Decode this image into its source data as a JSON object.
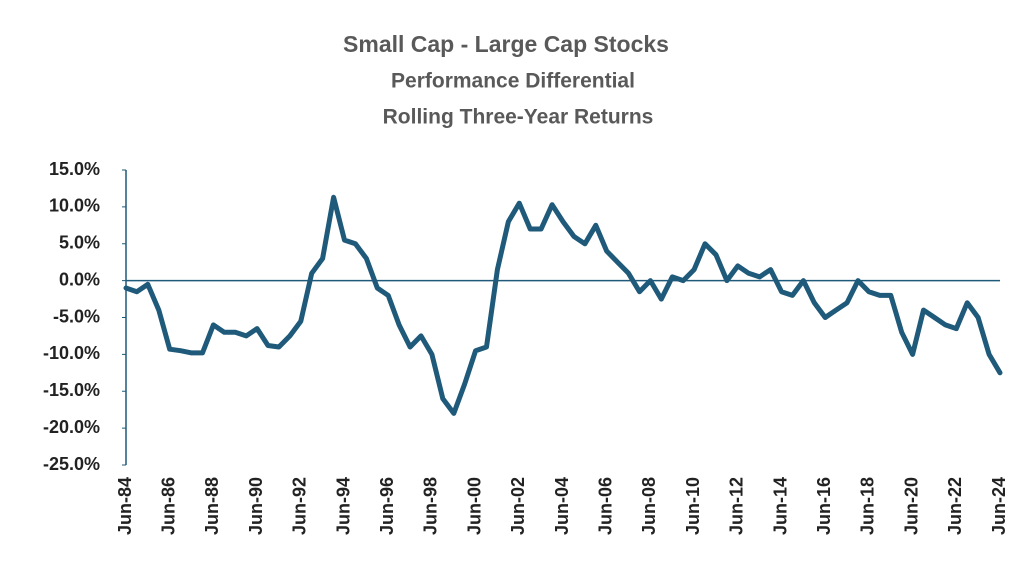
{
  "chart_data": {
    "type": "line",
    "title": "Small Cap - Large Cap Stocks",
    "subtitle": [
      "Performance Differential",
      "Rolling Three-Year Returns"
    ],
    "categories": [
      "Jun-84",
      null,
      null,
      null,
      "Jun-86",
      null,
      null,
      null,
      "Jun-88",
      null,
      null,
      null,
      "Jun-90",
      null,
      null,
      null,
      "Jun-92",
      null,
      null,
      null,
      "Jun-94",
      null,
      null,
      null,
      "Jun-96",
      null,
      null,
      null,
      "Jun-98",
      null,
      null,
      null,
      "Jun-00",
      null,
      null,
      null,
      "Jun-02",
      null,
      null,
      null,
      "Jun-04",
      null,
      null,
      null,
      "Jun-06",
      null,
      null,
      null,
      "Jun-08",
      null,
      null,
      null,
      "Jun-10",
      null,
      null,
      null,
      "Jun-12",
      null,
      null,
      null,
      "Jun-14",
      null,
      null,
      null,
      "Jun-16",
      null,
      null,
      null,
      "Jun-18",
      null,
      null,
      null,
      "Jun-20",
      null,
      null,
      null,
      "Jun-22",
      null,
      null,
      null,
      "Jun-24"
    ],
    "series": [
      {
        "name": "Small Cap - Large Cap",
        "color": "#1f5a7a",
        "values": [
          -1.0,
          -1.5,
          -0.5,
          -4,
          -9.3,
          -9.5,
          -9.8,
          -9.8,
          -6,
          -7,
          -7,
          -7.5,
          -6.5,
          -8.8,
          -9,
          -7.5,
          -5.5,
          1,
          3,
          11.3,
          5.5,
          5,
          3,
          -1,
          -2,
          -6,
          -9,
          -7.5,
          -10,
          -16,
          -18,
          -14,
          -9.5,
          -9,
          1.5,
          8,
          10.5,
          7,
          7,
          10.3,
          8,
          6,
          5,
          7.5,
          4,
          2.5,
          1,
          -1.5,
          0,
          -2.5,
          0.5,
          0,
          1.5,
          5,
          3.5,
          0,
          2,
          1,
          0.5,
          1.5,
          -1.5,
          -2,
          0,
          -3,
          -5,
          -4,
          -3,
          0,
          -1.5,
          -2,
          -2,
          -7,
          -10,
          -4,
          -5,
          -6,
          -6.5,
          -3,
          -5,
          -10,
          -12.5
        ]
      }
    ],
    "ylim": [
      -25,
      15
    ],
    "yticks": [
      {
        "value": -25,
        "label": "-25.0%"
      },
      {
        "value": -20,
        "label": "-20.0%"
      },
      {
        "value": -15,
        "label": "-15.0%"
      },
      {
        "value": -10,
        "label": "-10.0%"
      },
      {
        "value": -5,
        "label": "-5.0%"
      },
      {
        "value": 0,
        "label": "0.0%"
      },
      {
        "value": 5,
        "label": "5.0%"
      },
      {
        "value": 10,
        "label": "10.0%"
      },
      {
        "value": 15,
        "label": "15.0%"
      }
    ],
    "grid": false
  }
}
